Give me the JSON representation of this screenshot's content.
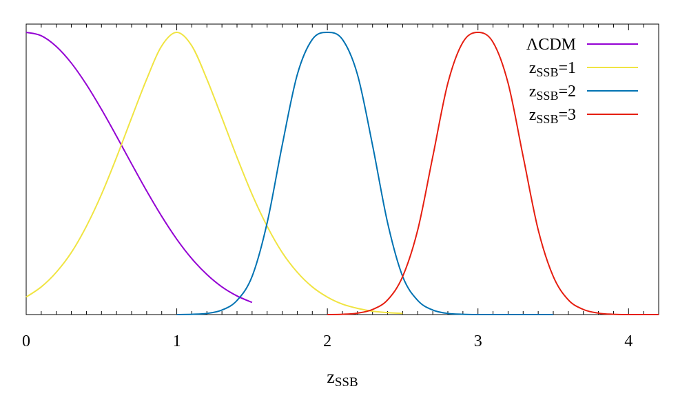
{
  "chart_data": {
    "type": "line",
    "title": "",
    "xlabel": {
      "base": "z",
      "sub": "SSB"
    },
    "ylabel": "",
    "xlim": [
      0,
      4.2
    ],
    "ylim": [
      0,
      1
    ],
    "x_ticks": [
      0,
      1,
      2,
      3,
      4
    ],
    "x_tick_labels": [
      "0",
      "1",
      "2",
      "3",
      "4"
    ],
    "y_ticks_labeled": false,
    "grid": false,
    "legend_position": "top-right",
    "series": [
      {
        "name": "ΛCDM",
        "label_base": "ΛCDM",
        "label_sub": "",
        "label_suffix": "",
        "color": "#9400d3",
        "x": [
          0.0,
          0.1,
          0.2,
          0.3,
          0.4,
          0.5,
          0.6,
          0.7,
          0.8,
          0.9,
          1.0,
          1.1,
          1.2,
          1.3,
          1.4,
          1.5
        ],
        "values": [
          1.0,
          0.988,
          0.95,
          0.891,
          0.815,
          0.727,
          0.632,
          0.534,
          0.438,
          0.348,
          0.267,
          0.198,
          0.142,
          0.098,
          0.066,
          0.043
        ]
      },
      {
        "name": "zSSB=1",
        "label_base": "z",
        "label_sub": "SSB",
        "label_suffix": "=1",
        "color": "#f0e442",
        "x": [
          0.0,
          0.1,
          0.2,
          0.3,
          0.4,
          0.5,
          0.6,
          0.7,
          0.8,
          0.9,
          1.0,
          1.1,
          1.2,
          1.3,
          1.4,
          1.5,
          1.6,
          1.7,
          1.8,
          1.9,
          2.0,
          2.1,
          2.2,
          2.3,
          2.4,
          2.5
        ],
        "values": [
          0.062,
          0.098,
          0.15,
          0.22,
          0.313,
          0.426,
          0.557,
          0.697,
          0.834,
          0.952,
          1.0,
          0.952,
          0.834,
          0.697,
          0.557,
          0.426,
          0.313,
          0.22,
          0.15,
          0.098,
          0.062,
          0.037,
          0.022,
          0.012,
          0.007,
          0.004
        ]
      },
      {
        "name": "zSSB=2",
        "label_base": "z",
        "label_sub": "SSB",
        "label_suffix": "=2",
        "color": "#0072b2",
        "x": [
          1.0,
          1.1,
          1.2,
          1.3,
          1.4,
          1.5,
          1.6,
          1.7,
          1.8,
          1.9,
          2.0,
          2.1,
          2.2,
          2.3,
          2.4,
          2.5,
          2.6,
          2.7,
          2.8,
          2.9,
          3.0,
          3.1,
          3.2,
          3.3,
          3.4,
          3.5
        ],
        "values": [
          0.0,
          0.001,
          0.004,
          0.016,
          0.05,
          0.135,
          0.325,
          0.6,
          0.85,
          0.975,
          1.0,
          0.975,
          0.85,
          0.6,
          0.325,
          0.135,
          0.05,
          0.016,
          0.004,
          0.001,
          0.0,
          0.0,
          0.0,
          0.0,
          0.0,
          0.0
        ]
      },
      {
        "name": "zSSB=3",
        "label_base": "z",
        "label_sub": "SSB",
        "label_suffix": "=3",
        "color": "#e51e10",
        "x": [
          2.0,
          2.1,
          2.2,
          2.3,
          2.4,
          2.5,
          2.6,
          2.7,
          2.8,
          2.9,
          3.0,
          3.1,
          3.2,
          3.3,
          3.4,
          3.5,
          3.6,
          3.7,
          3.8,
          3.9,
          4.0,
          4.1,
          4.2
        ],
        "values": [
          0.0,
          0.001,
          0.005,
          0.018,
          0.052,
          0.135,
          0.3,
          0.56,
          0.82,
          0.965,
          1.0,
          0.965,
          0.82,
          0.56,
          0.3,
          0.135,
          0.052,
          0.018,
          0.005,
          0.001,
          0.0,
          0.0,
          0.0
        ]
      }
    ]
  }
}
